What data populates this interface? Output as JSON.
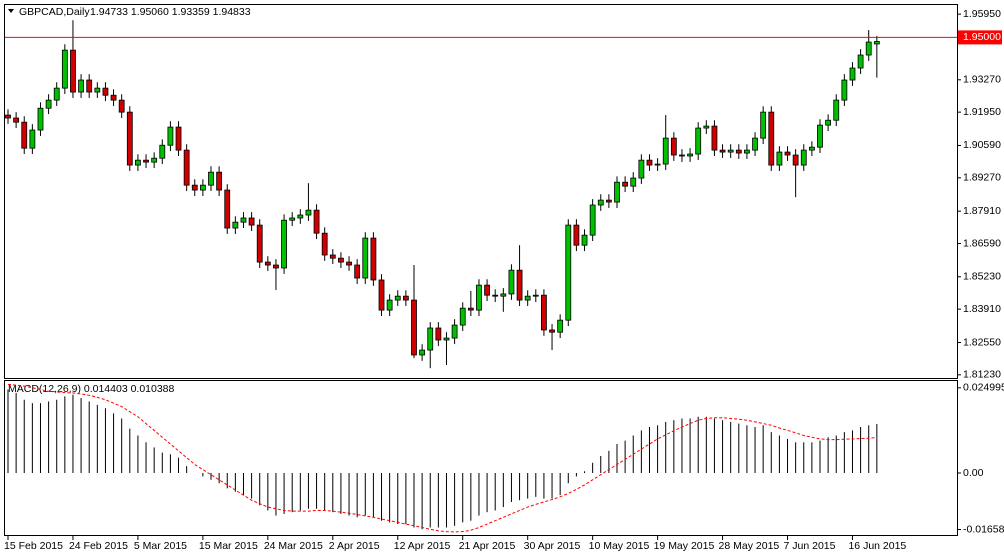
{
  "chart_data": [
    {
      "type": "candlestick",
      "title": "GBPCAD,Daily",
      "header_values": "1.94733 1.95060 1.93359 1.94833",
      "categories": [
        "15 Feb 2015",
        null,
        null,
        null,
        null,
        null,
        null,
        null,
        "24 Feb 2015",
        null,
        null,
        null,
        null,
        null,
        null,
        null,
        "5 Mar 2015",
        null,
        null,
        null,
        null,
        null,
        null,
        null,
        "15 Mar 2015",
        null,
        null,
        null,
        null,
        null,
        null,
        null,
        "24 Mar 2015",
        null,
        null,
        null,
        null,
        null,
        null,
        null,
        "2 Apr 2015",
        null,
        null,
        null,
        null,
        null,
        null,
        null,
        "12 Apr 2015",
        null,
        null,
        null,
        null,
        null,
        null,
        null,
        "21 Apr 2015",
        null,
        null,
        null,
        null,
        null,
        null,
        null,
        "30 Apr 2015",
        null,
        null,
        null,
        null,
        null,
        null,
        null,
        "10 May 2015",
        null,
        null,
        null,
        null,
        null,
        null,
        null,
        "19 May 2015",
        null,
        null,
        null,
        null,
        null,
        null,
        null,
        "28 May 2015",
        null,
        null,
        null,
        null,
        null,
        null,
        null,
        "7 Jun 2015",
        null,
        null,
        null,
        null,
        null,
        null,
        null,
        "16 Jun 2015",
        null,
        null,
        null
      ],
      "open": [
        1.9183,
        1.9171,
        1.9154,
        1.9048,
        1.9122,
        1.9211,
        1.9244,
        1.9293,
        1.9448,
        1.9277,
        1.9326,
        1.9277,
        1.9293,
        1.9264,
        1.9244,
        1.9195,
        1.8979,
        1.8999,
        1.8991,
        1.9007,
        1.906,
        1.9134,
        1.904,
        1.8897,
        1.8877,
        1.8897,
        1.895,
        1.8877,
        1.8722,
        1.8746,
        1.8763,
        1.8734,
        1.8583,
        1.8571,
        1.8559,
        1.8754,
        1.8763,
        1.8775,
        1.8795,
        1.8701,
        1.8612,
        1.8599,
        1.8583,
        1.8571,
        1.8518,
        1.8681,
        1.851,
        1.8387,
        1.8428,
        1.8444,
        1.8428,
        1.8204,
        1.8224,
        1.8314,
        1.8265,
        1.8273,
        1.8326,
        1.8395,
        1.8387,
        1.8489,
        1.8448,
        1.8444,
        1.8453,
        1.855,
        1.8428,
        1.8444,
        1.8448,
        1.8306,
        1.8297,
        1.8346,
        1.8734,
        1.8652,
        1.8693,
        1.8816,
        1.8836,
        1.8828,
        1.8909,
        1.8893,
        1.8926,
        1.8999,
        1.8979,
        1.8983,
        1.9089,
        1.902,
        1.9016,
        1.9024,
        1.913,
        1.9138,
        1.904,
        1.9032,
        1.904,
        1.9028,
        1.904,
        1.9089,
        1.9195,
        1.8979,
        1.9032,
        1.902,
        1.8979,
        1.904,
        1.9052,
        1.9142,
        1.9162,
        1.9244,
        1.9326,
        1.9375,
        1.9428,
        1.94733
      ],
      "high": [
        1.9207,
        1.9195,
        1.9178,
        1.9146,
        1.9235,
        1.9268,
        1.9317,
        1.9472,
        1.957,
        1.935,
        1.935,
        1.9317,
        1.9317,
        1.9288,
        1.9268,
        1.9219,
        1.9023,
        1.9023,
        1.9031,
        1.9084,
        1.9158,
        1.9158,
        1.9064,
        1.8921,
        1.8921,
        1.8974,
        1.8974,
        1.8901,
        1.877,
        1.8787,
        1.8787,
        1.8758,
        1.8607,
        1.8595,
        1.8778,
        1.8787,
        1.8799,
        1.8905,
        1.8819,
        1.8725,
        1.8636,
        1.8623,
        1.8607,
        1.8595,
        1.8705,
        1.8705,
        1.8534,
        1.8452,
        1.8468,
        1.8468,
        1.8571,
        1.8248,
        1.8338,
        1.8338,
        1.8297,
        1.835,
        1.8419,
        1.8465,
        1.8513,
        1.8513,
        1.8472,
        1.8477,
        1.8574,
        1.8652,
        1.8468,
        1.8472,
        1.8472,
        1.833,
        1.837,
        1.8758,
        1.8758,
        1.8717,
        1.884,
        1.886,
        1.886,
        1.8933,
        1.8933,
        1.895,
        1.9023,
        1.9023,
        1.9007,
        1.9183,
        1.9113,
        1.9044,
        1.9048,
        1.9154,
        1.9162,
        1.9162,
        1.9064,
        1.9064,
        1.9064,
        1.9064,
        1.9113,
        1.9219,
        1.9219,
        1.9056,
        1.9056,
        1.9044,
        1.9064,
        1.9076,
        1.9166,
        1.9186,
        1.9268,
        1.935,
        1.9399,
        1.9452,
        1.953,
        1.9506
      ],
      "low": [
        1.9147,
        1.913,
        1.9024,
        1.9024,
        1.9098,
        1.9187,
        1.922,
        1.9269,
        1.9253,
        1.9253,
        1.9253,
        1.9253,
        1.924,
        1.922,
        1.9171,
        1.8955,
        1.8955,
        1.8967,
        1.8967,
        1.8983,
        1.9036,
        1.9016,
        1.8873,
        1.8853,
        1.8853,
        1.8873,
        1.8853,
        1.8698,
        1.8698,
        1.8722,
        1.871,
        1.8559,
        1.8547,
        1.8469,
        1.8535,
        1.873,
        1.8739,
        1.8751,
        1.8677,
        1.8588,
        1.8575,
        1.8559,
        1.8547,
        1.8494,
        1.8494,
        1.8486,
        1.8363,
        1.8363,
        1.8404,
        1.8404,
        1.8191,
        1.818,
        1.815,
        1.8241,
        1.8163,
        1.8249,
        1.8302,
        1.8363,
        1.8363,
        1.8424,
        1.842,
        1.838,
        1.8429,
        1.8404,
        1.8404,
        1.842,
        1.8282,
        1.8224,
        1.8273,
        1.8322,
        1.8628,
        1.8628,
        1.8669,
        1.8792,
        1.8804,
        1.8804,
        1.8869,
        1.8869,
        1.8902,
        1.8955,
        1.8955,
        1.8959,
        1.8996,
        1.8992,
        1.8992,
        1.9,
        1.9106,
        1.9016,
        1.9008,
        1.9008,
        1.9004,
        1.9004,
        1.9016,
        1.9065,
        1.8955,
        1.8955,
        1.8996,
        1.8848,
        1.8955,
        1.9016,
        1.9028,
        1.9118,
        1.9138,
        1.922,
        1.9302,
        1.9351,
        1.9404,
        1.93359
      ],
      "close": [
        1.9171,
        1.9154,
        1.9048,
        1.9122,
        1.9211,
        1.9244,
        1.9293,
        1.9448,
        1.9277,
        1.9326,
        1.9277,
        1.9293,
        1.9264,
        1.9244,
        1.9195,
        1.8979,
        1.8999,
        1.8991,
        1.9007,
        1.906,
        1.9134,
        1.904,
        1.8897,
        1.8877,
        1.8897,
        1.895,
        1.8877,
        1.8722,
        1.8746,
        1.8763,
        1.8734,
        1.8583,
        1.8571,
        1.8559,
        1.8754,
        1.8763,
        1.8775,
        1.8795,
        1.8701,
        1.8612,
        1.8599,
        1.8583,
        1.8571,
        1.8518,
        1.8681,
        1.851,
        1.8387,
        1.8428,
        1.8444,
        1.8428,
        1.8204,
        1.8224,
        1.8314,
        1.8265,
        1.8273,
        1.8326,
        1.8395,
        1.8387,
        1.8489,
        1.8448,
        1.8444,
        1.8453,
        1.855,
        1.8428,
        1.8444,
        1.8448,
        1.8306,
        1.8297,
        1.8346,
        1.8734,
        1.8652,
        1.8693,
        1.8816,
        1.8836,
        1.8828,
        1.8909,
        1.8893,
        1.8926,
        1.8999,
        1.8979,
        1.8983,
        1.9089,
        1.902,
        1.9016,
        1.9024,
        1.913,
        1.9138,
        1.904,
        1.9032,
        1.904,
        1.9028,
        1.904,
        1.9089,
        1.9195,
        1.8979,
        1.9032,
        1.902,
        1.8979,
        1.904,
        1.9052,
        1.9142,
        1.9162,
        1.9244,
        1.9326,
        1.9375,
        1.9428,
        1.9481,
        1.94833
      ],
      "up_color": "#00c000",
      "down_color": "#d00000",
      "ylim": [
        1.811,
        1.962
      ],
      "yticks": [
        {
          "value": 1.9595,
          "label": "1.95950"
        },
        {
          "value": 1.9327,
          "label": "1.93270"
        },
        {
          "value": 1.9195,
          "label": "1.91950"
        },
        {
          "value": 1.9059,
          "label": "1.90590"
        },
        {
          "value": 1.8927,
          "label": "1.89270"
        },
        {
          "value": 1.8791,
          "label": "1.87910"
        },
        {
          "value": 1.8659,
          "label": "1.86590"
        },
        {
          "value": 1.8523,
          "label": "1.85230"
        },
        {
          "value": 1.8391,
          "label": "1.83910"
        },
        {
          "value": 1.8255,
          "label": "1.82550"
        },
        {
          "value": 1.8123,
          "label": "1.81230"
        }
      ],
      "level": {
        "value": 1.95,
        "label": "1.95000",
        "color": "#ff0000"
      }
    },
    {
      "type": "macd",
      "title": "MACD(12,26,9) 0.014403 0.010388",
      "histogram": [
        0.0245,
        0.0235,
        0.0215,
        0.0205,
        0.0205,
        0.021,
        0.0215,
        0.0225,
        0.023,
        0.022,
        0.021,
        0.02,
        0.019,
        0.0175,
        0.016,
        0.013,
        0.011,
        0.009,
        0.0075,
        0.006,
        0.0055,
        0.0045,
        0.002,
        0.0,
        -0.001,
        -0.002,
        -0.003,
        -0.0045,
        -0.0055,
        -0.0065,
        -0.0075,
        -0.0095,
        -0.011,
        -0.0125,
        -0.012,
        -0.0115,
        -0.011,
        -0.0105,
        -0.0105,
        -0.011,
        -0.0115,
        -0.012,
        -0.0125,
        -0.013,
        -0.0125,
        -0.013,
        -0.014,
        -0.0145,
        -0.015,
        -0.015,
        -0.016,
        -0.0165,
        -0.016,
        -0.016,
        -0.016,
        -0.0155,
        -0.0145,
        -0.014,
        -0.0125,
        -0.0115,
        -0.011,
        -0.01,
        -0.0085,
        -0.008,
        -0.0075,
        -0.007,
        -0.0075,
        -0.0075,
        -0.0065,
        -0.003,
        -0.001,
        0.0005,
        0.003,
        0.005,
        0.0065,
        0.0085,
        0.0095,
        0.011,
        0.0125,
        0.0135,
        0.014,
        0.015,
        0.0155,
        0.016,
        0.016,
        0.0165,
        0.0165,
        0.016,
        0.0155,
        0.015,
        0.0145,
        0.014,
        0.0135,
        0.014,
        0.012,
        0.011,
        0.01,
        0.009,
        0.009,
        0.009,
        0.0095,
        0.0105,
        0.011,
        0.012,
        0.0125,
        0.0135,
        0.014,
        0.014403
      ],
      "signal": [
        0.026,
        0.0258,
        0.0255,
        0.025,
        0.0245,
        0.024,
        0.0238,
        0.0236,
        0.0235,
        0.0232,
        0.0228,
        0.0222,
        0.0215,
        0.0205,
        0.0195,
        0.018,
        0.0165,
        0.0145,
        0.0125,
        0.0105,
        0.0085,
        0.0065,
        0.0045,
        0.0025,
        0.001,
        -0.0005,
        -0.002,
        -0.0035,
        -0.005,
        -0.0065,
        -0.008,
        -0.009,
        -0.01,
        -0.0105,
        -0.011,
        -0.0112,
        -0.0112,
        -0.0112,
        -0.011,
        -0.011,
        -0.0112,
        -0.0115,
        -0.0118,
        -0.0122,
        -0.0126,
        -0.013,
        -0.0135,
        -0.014,
        -0.0145,
        -0.015,
        -0.0155,
        -0.016,
        -0.0165,
        -0.017,
        -0.0172,
        -0.0173,
        -0.0172,
        -0.0168,
        -0.016,
        -0.015,
        -0.014,
        -0.013,
        -0.012,
        -0.011,
        -0.01,
        -0.0092,
        -0.0085,
        -0.0078,
        -0.007,
        -0.006,
        -0.0048,
        -0.0035,
        -0.002,
        -0.0005,
        0.001,
        0.0025,
        0.004,
        0.0055,
        0.007,
        0.0085,
        0.01,
        0.0112,
        0.0124,
        0.0135,
        0.0145,
        0.0155,
        0.016,
        0.0162,
        0.0162,
        0.016,
        0.0158,
        0.0155,
        0.015,
        0.0145,
        0.014,
        0.0132,
        0.0125,
        0.0118,
        0.011,
        0.0105,
        0.01,
        0.0098,
        0.0098,
        0.0099,
        0.01,
        0.0101,
        0.0102,
        0.010388
      ],
      "histogram_color": "#000000",
      "signal_color": "#ff0000",
      "ylim": [
        -0.0182,
        0.027
      ],
      "yticks": [
        0.024995,
        {
          "value": 0,
          "label": "0.00"
        },
        -0.016581
      ]
    }
  ]
}
